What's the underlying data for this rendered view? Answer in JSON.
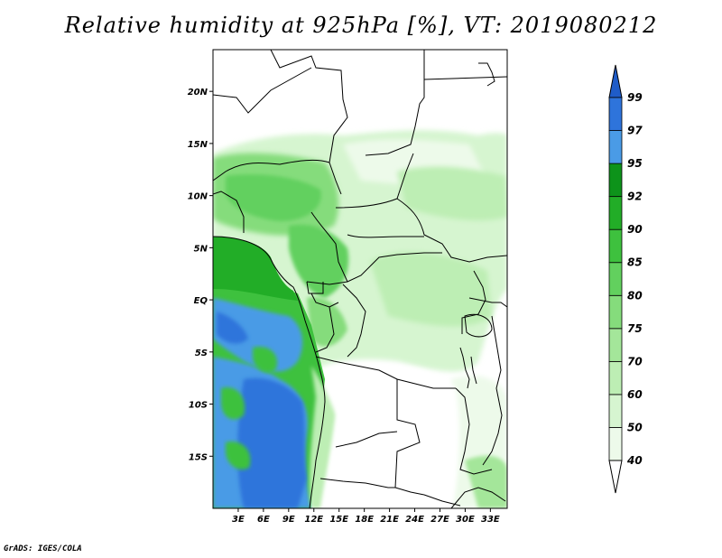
{
  "title": "Relative humidity at 925hPa [%], VT: 2019080212",
  "credit": "GrADS: IGES/COLA",
  "map": {
    "lon_range": [
      0,
      35
    ],
    "lat_range": [
      -20,
      24
    ],
    "lat_ticks": [
      "20N",
      "15N",
      "10N",
      "5N",
      "EQ",
      "5S",
      "10S",
      "15S"
    ],
    "lon_ticks": [
      "3E",
      "6E",
      "9E",
      "12E",
      "15E",
      "18E",
      "21E",
      "24E",
      "27E",
      "30E",
      "33E"
    ]
  },
  "colorbar": {
    "levels": [
      "40",
      "50",
      "60",
      "70",
      "75",
      "80",
      "85",
      "90",
      "92",
      "95",
      "97",
      "99"
    ],
    "colors": [
      "#ffffff",
      "#edfaea",
      "#d6f5d0",
      "#bdeeb4",
      "#a4e69a",
      "#85dc7c",
      "#62d05e",
      "#3ec13e",
      "#22ad27",
      "#0d931a",
      "#4a9be6",
      "#2e74db",
      "#1f5cc8"
    ]
  }
}
